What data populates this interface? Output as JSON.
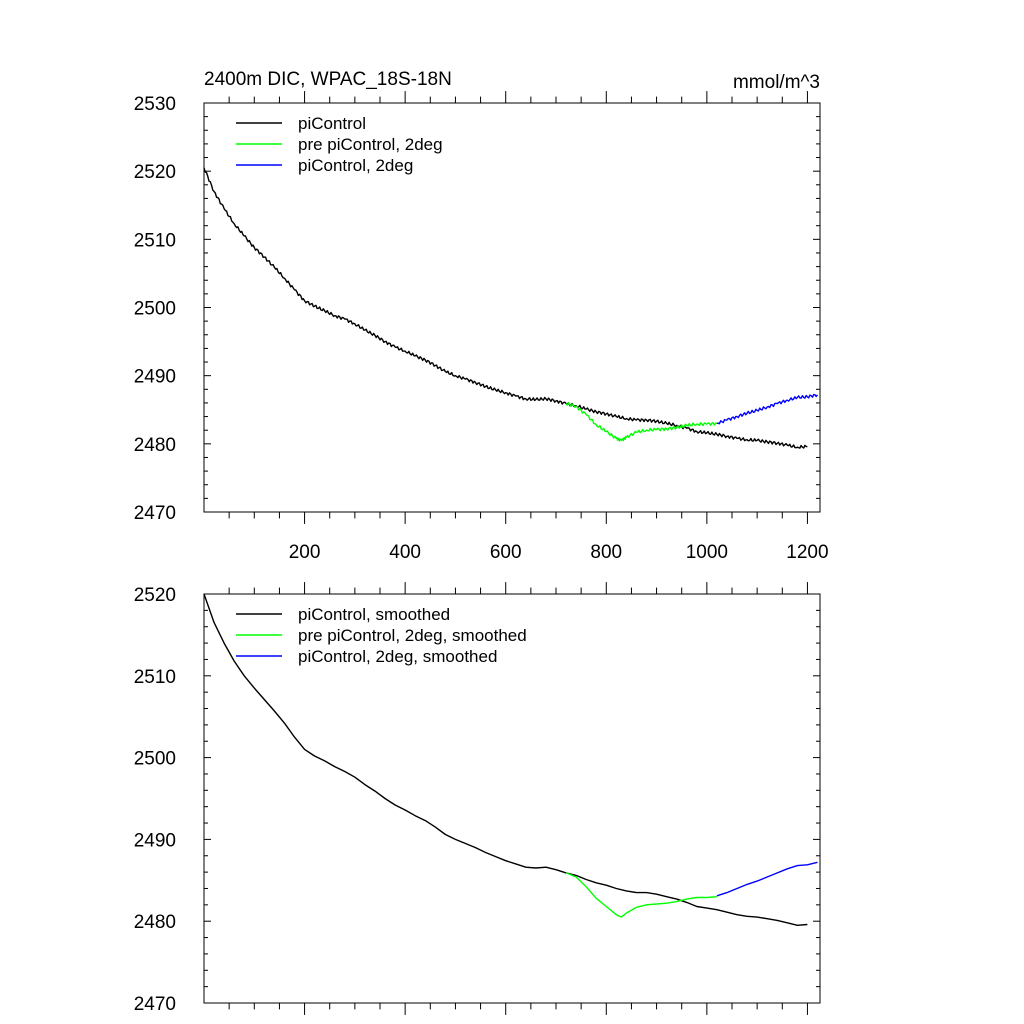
{
  "title_left": "2400m DIC, WPAC_18S-18N",
  "title_right": "mmol/m^3",
  "chart_data": [
    {
      "type": "line",
      "panel": "top",
      "xlim": [
        0,
        1225
      ],
      "ylim": [
        2470,
        2530
      ],
      "xticks": [
        200,
        400,
        600,
        800,
        1000,
        1200
      ],
      "xtick_labels": [
        "200",
        "400",
        "600",
        "800",
        "1000",
        "1200"
      ],
      "yticks": [
        2470,
        2480,
        2490,
        2500,
        2510,
        2520,
        2530
      ],
      "ytick_labels": [
        "2470",
        "2480",
        "2490",
        "2500",
        "2510",
        "2520",
        "2530"
      ],
      "legend_position": "top-left",
      "series": [
        {
          "name": "piControl",
          "color": "#000000",
          "x": [
            0,
            20,
            40,
            60,
            80,
            100,
            120,
            140,
            160,
            180,
            200,
            220,
            240,
            260,
            280,
            300,
            320,
            340,
            360,
            380,
            400,
            420,
            440,
            460,
            480,
            500,
            520,
            540,
            560,
            580,
            600,
            620,
            640,
            660,
            680,
            700,
            720,
            740,
            760,
            780,
            800,
            820,
            840,
            860,
            880,
            900,
            920,
            940,
            960,
            980,
            1000,
            1020,
            1040,
            1060,
            1080,
            1100,
            1120,
            1140,
            1160,
            1180,
            1200
          ],
          "y": [
            2520.5,
            2517.0,
            2514.5,
            2512.3,
            2510.5,
            2508.8,
            2507.4,
            2505.9,
            2504.3,
            2502.6,
            2501.0,
            2500.2,
            2499.5,
            2498.8,
            2498.3,
            2497.6,
            2496.7,
            2495.9,
            2495.0,
            2494.2,
            2493.6,
            2492.9,
            2492.3,
            2491.5,
            2490.6,
            2490.0,
            2489.5,
            2489.0,
            2488.4,
            2487.9,
            2487.5,
            2487.0,
            2486.6,
            2486.5,
            2486.6,
            2486.3,
            2485.9,
            2485.6,
            2485.1,
            2484.7,
            2484.4,
            2484.0,
            2483.7,
            2483.5,
            2483.5,
            2483.3,
            2483.0,
            2482.7,
            2482.3,
            2481.8,
            2481.6,
            2481.4,
            2481.1,
            2480.8,
            2480.6,
            2480.5,
            2480.3,
            2480.1,
            2479.8,
            2479.5,
            2479.6
          ]
        },
        {
          "name": "pre piControl, 2deg",
          "color": "#00ff00",
          "x": [
            720,
            740,
            760,
            780,
            800,
            820,
            830,
            840,
            860,
            880,
            900,
            920,
            940,
            960,
            980,
            1000,
            1020
          ],
          "y": [
            2485.9,
            2485.5,
            2484.3,
            2482.8,
            2481.8,
            2480.8,
            2480.5,
            2481.0,
            2481.7,
            2482.0,
            2482.1,
            2482.2,
            2482.4,
            2482.7,
            2482.9,
            2482.9,
            2483.0
          ]
        },
        {
          "name": "piControl, 2deg",
          "color": "#0000ff",
          "x": [
            1020,
            1040,
            1060,
            1080,
            1100,
            1120,
            1140,
            1160,
            1180,
            1200,
            1220
          ],
          "y": [
            2483.0,
            2483.5,
            2484.0,
            2484.5,
            2484.9,
            2485.4,
            2485.9,
            2486.4,
            2486.8,
            2486.9,
            2487.2
          ]
        }
      ]
    },
    {
      "type": "line",
      "panel": "bottom",
      "xlim": [
        0,
        1225
      ],
      "ylim": [
        2470,
        2520
      ],
      "yticks": [
        2470,
        2480,
        2490,
        2500,
        2510,
        2520
      ],
      "ytick_labels": [
        "2470",
        "2480",
        "2490",
        "2500",
        "2510",
        "2520"
      ],
      "legend_position": "top-left",
      "series": [
        {
          "name": "piControl, smoothed",
          "color": "#000000",
          "x": [
            0,
            20,
            40,
            60,
            80,
            100,
            120,
            140,
            160,
            180,
            200,
            220,
            240,
            260,
            280,
            300,
            320,
            340,
            360,
            380,
            400,
            420,
            440,
            460,
            480,
            500,
            520,
            540,
            560,
            580,
            600,
            620,
            640,
            660,
            680,
            700,
            720,
            740,
            760,
            780,
            800,
            820,
            840,
            860,
            880,
            900,
            920,
            940,
            960,
            980,
            1000,
            1020,
            1040,
            1060,
            1080,
            1100,
            1120,
            1140,
            1160,
            1180,
            1200
          ],
          "y": [
            2520.0,
            2516.5,
            2514.0,
            2511.8,
            2510.0,
            2508.5,
            2507.1,
            2505.7,
            2504.2,
            2502.5,
            2501.0,
            2500.2,
            2499.6,
            2498.9,
            2498.3,
            2497.6,
            2496.7,
            2495.9,
            2495.0,
            2494.2,
            2493.6,
            2492.9,
            2492.3,
            2491.5,
            2490.6,
            2490.0,
            2489.5,
            2489.0,
            2488.4,
            2487.9,
            2487.4,
            2487.0,
            2486.6,
            2486.5,
            2486.6,
            2486.3,
            2485.9,
            2485.6,
            2485.1,
            2484.7,
            2484.4,
            2484.0,
            2483.7,
            2483.5,
            2483.5,
            2483.3,
            2483.0,
            2482.7,
            2482.3,
            2481.8,
            2481.6,
            2481.4,
            2481.1,
            2480.8,
            2480.6,
            2480.5,
            2480.3,
            2480.1,
            2479.8,
            2479.5,
            2479.6
          ]
        },
        {
          "name": "pre piControl, 2deg, smoothed",
          "color": "#00ff00",
          "x": [
            720,
            740,
            760,
            780,
            800,
            820,
            830,
            840,
            860,
            880,
            900,
            920,
            940,
            960,
            980,
            1000,
            1020
          ],
          "y": [
            2485.9,
            2485.4,
            2484.2,
            2482.8,
            2481.8,
            2480.8,
            2480.5,
            2481.0,
            2481.7,
            2482.0,
            2482.1,
            2482.2,
            2482.4,
            2482.7,
            2482.9,
            2482.9,
            2483.0
          ]
        },
        {
          "name": "piControl, 2deg, smoothed",
          "color": "#0000ff",
          "x": [
            1020,
            1040,
            1060,
            1080,
            1100,
            1120,
            1140,
            1160,
            1180,
            1200,
            1220
          ],
          "y": [
            2483.1,
            2483.5,
            2484.0,
            2484.5,
            2484.9,
            2485.4,
            2485.9,
            2486.4,
            2486.8,
            2486.9,
            2487.2
          ]
        }
      ]
    }
  ]
}
